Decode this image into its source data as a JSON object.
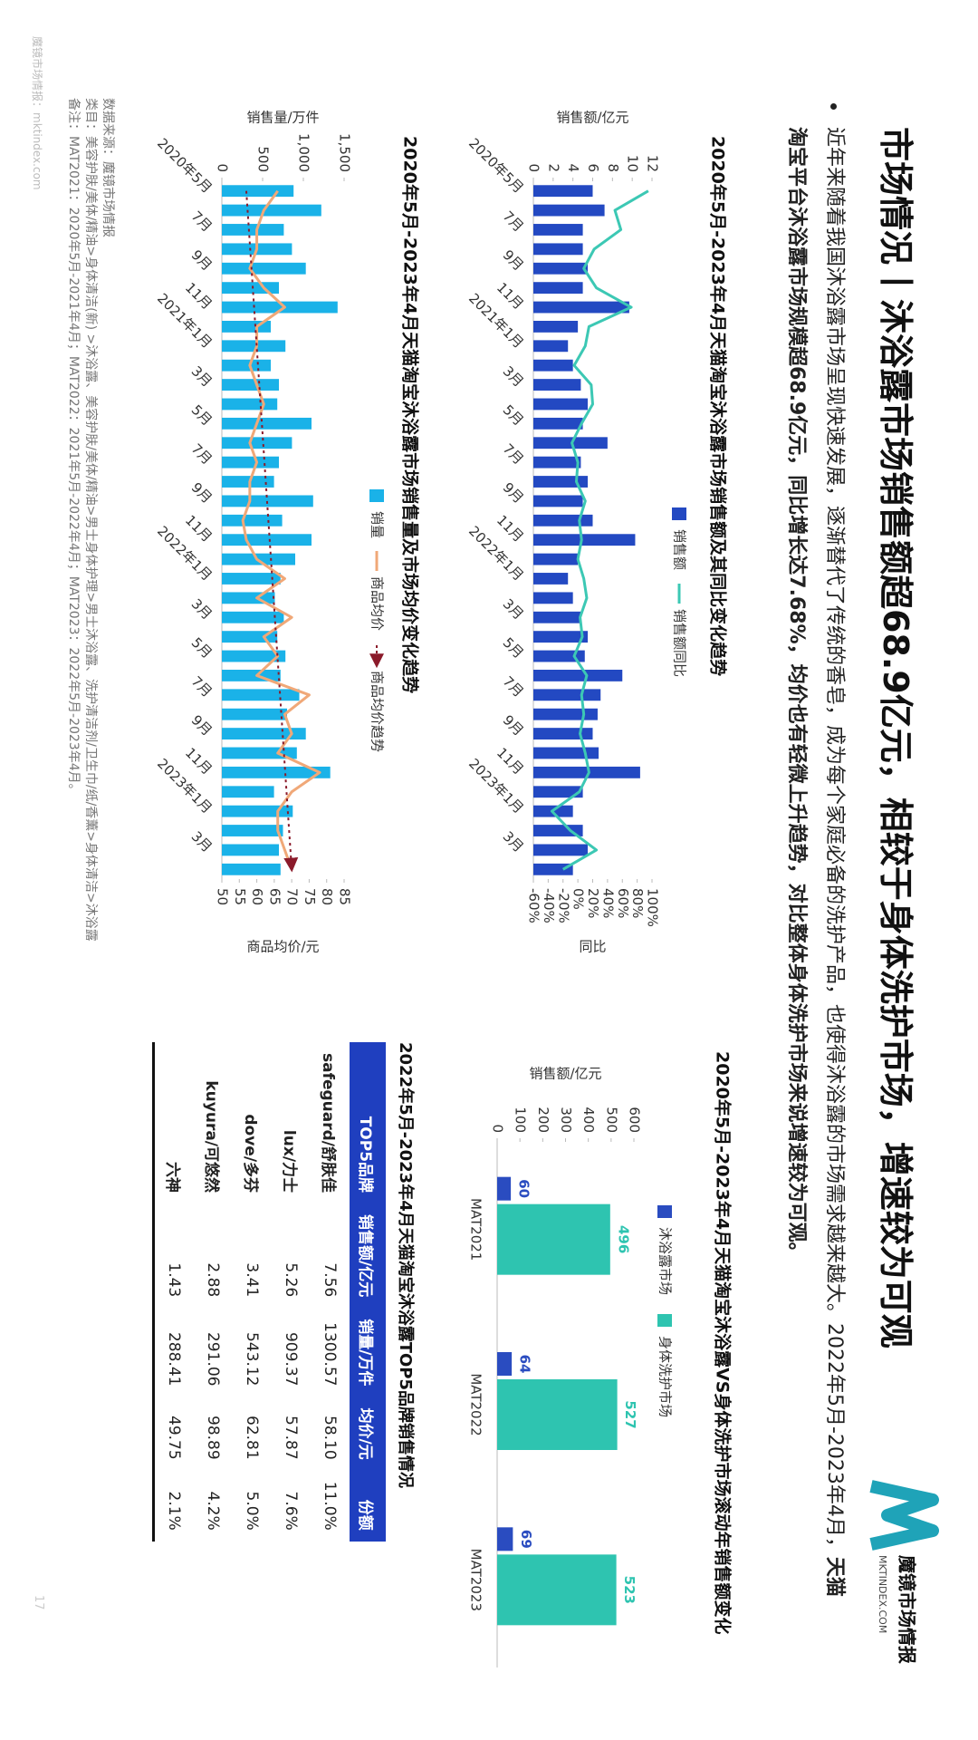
{
  "header": {
    "title": "市场情况丨沐浴露市场销售额超68.9亿元，相较于身体洗护市场，增速较为可观",
    "logo_name": "魔镜市场情报",
    "logo_url": "MKTINDEX.COM"
  },
  "intro": {
    "text": "近年来随着我国沐浴露市场呈现快速发展，逐渐替代了传统的香皂，成为每个家庭必备的洗护产品，也使得沐浴露的市场需求越来越大。2022年5月-2023年4月，",
    "highlight": "天猫淘宝平台沐浴露市场规模超68.9亿元，同比增长达7.68%，均价也有轻微上升趋势，对比整体身体洗护市场来说增速较为可观。"
  },
  "chart_data": [
    {
      "type": "bar-line",
      "title": "2020年5月-2023年4月天猫淘宝沐浴露市场销售额及其同比变化趋势",
      "y_label": "销售额/亿元",
      "y2_label": "同比",
      "categories": [
        "2020年5月",
        null,
        "7月",
        null,
        "9月",
        null,
        "11月",
        null,
        "2021年1月",
        null,
        "3月",
        null,
        "5月",
        null,
        "7月",
        null,
        "9月",
        null,
        "11月",
        null,
        "2022年1月",
        null,
        "3月",
        null,
        "5月",
        null,
        "7月",
        null,
        "9月",
        null,
        "11月",
        null,
        "2023年1月",
        null,
        "3月",
        null
      ],
      "series": [
        {
          "name": "销售额",
          "color": "#2349c2",
          "type": "bar",
          "values": [
            6.0,
            7.2,
            5.0,
            5.0,
            5.5,
            5.0,
            9.7,
            4.5,
            3.5,
            4.0,
            4.8,
            5.5,
            5.0,
            7.5,
            4.8,
            5.5,
            5.0,
            6.0,
            10.3,
            4.5,
            3.5,
            4.0,
            4.8,
            5.5,
            5.2,
            9.0,
            6.8,
            6.5,
            6.0,
            6.6,
            10.8,
            5.0,
            4.0,
            5.0,
            5.5,
            4.0
          ]
        },
        {
          "name": "销售额同比",
          "color": "#3cc8b4",
          "type": "line",
          "axis": "y2",
          "values": [
            95,
            50,
            58,
            22,
            8,
            25,
            72,
            15,
            10,
            -5,
            18,
            20,
            5,
            -8,
            0,
            -2,
            10,
            2,
            5,
            0,
            8,
            12,
            3,
            6,
            -5,
            12,
            5,
            8,
            3,
            10,
            15,
            2,
            -35,
            -10,
            25,
            -20
          ]
        }
      ],
      "ylim": [
        0,
        12
      ],
      "yticks": [
        0,
        2,
        4,
        6,
        8,
        10,
        12
      ],
      "y2lim": [
        -60,
        100
      ],
      "y2ticks": [
        {
          "value": -60,
          "label": "-60%"
        },
        {
          "value": -40,
          "label": "-40%"
        },
        {
          "value": -20,
          "label": "-20%"
        },
        {
          "value": 0,
          "label": "0%"
        },
        {
          "value": 20,
          "label": "20%"
        },
        {
          "value": 40,
          "label": "40%"
        },
        {
          "value": 60,
          "label": "60%"
        },
        {
          "value": 80,
          "label": "80%"
        },
        {
          "value": 100,
          "label": "100%"
        }
      ]
    },
    {
      "type": "bar-line",
      "title": "2020年5月-2023年4月天猫淘宝沐浴露市场销售量及市场均价变化趋势",
      "y_label": "销售量/万件",
      "y2_label": "商品均价/元",
      "categories": [
        "2020年5月",
        null,
        "7月",
        null,
        "9月",
        null,
        "11月",
        null,
        "2021年1月",
        null,
        "3月",
        null,
        "5月",
        null,
        "7月",
        null,
        "9月",
        null,
        "11月",
        null,
        "2022年1月",
        null,
        "3月",
        null,
        "5月",
        null,
        "7月",
        null,
        "9月",
        null,
        "11月",
        null,
        "2023年1月",
        null,
        "3月",
        null
      ],
      "series": [
        {
          "name": "销量",
          "color": "#1ab2e8",
          "type": "bar",
          "values": [
            880,
            1220,
            760,
            860,
            1030,
            700,
            1420,
            600,
            780,
            600,
            700,
            680,
            1100,
            860,
            700,
            640,
            1120,
            740,
            1100,
            900,
            720,
            650,
            760,
            680,
            780,
            720,
            950,
            800,
            1030,
            920,
            1330,
            640,
            870,
            750,
            700,
            720
          ]
        },
        {
          "name": "商品均价",
          "color": "#f0a878",
          "type": "line",
          "axis": "y2",
          "values": [
            66,
            62,
            60,
            60,
            58,
            62,
            68,
            60,
            60,
            58,
            60,
            62,
            60,
            58,
            60,
            58,
            58,
            56,
            57,
            60,
            68,
            60,
            70,
            62,
            66,
            60,
            75,
            68,
            70,
            66,
            78,
            70,
            66,
            66,
            68,
            70
          ]
        }
      ],
      "trend": {
        "name": "商品均价趋势",
        "color": "#8b1a2a",
        "axis": "y2",
        "start": 57,
        "end": 70
      },
      "ylim": [
        0,
        1500
      ],
      "yticks": [
        0,
        500,
        {
          "value": 1000,
          "label": "1,000"
        },
        {
          "value": 1500,
          "label": "1,500"
        }
      ],
      "y2lim": [
        50,
        85
      ],
      "y2ticks": [
        50,
        55,
        60,
        65,
        70,
        75,
        80,
        85
      ]
    },
    {
      "type": "grouped-bar",
      "title": "2020年5月-2023年4月天猫淘宝沐浴露VS身体洗护市场滚动年销售额变化",
      "y_label": "销售额/亿元",
      "categories": [
        "MAT2021",
        "MAT2022",
        "MAT2023"
      ],
      "series": [
        {
          "name": "沐浴露市场",
          "color": "#2a4cc0",
          "values": [
            60,
            64,
            69
          ]
        },
        {
          "name": "身体洗护市场",
          "color": "#2ec4b0",
          "values": [
            496,
            527,
            523
          ]
        }
      ],
      "ylim": [
        0,
        600
      ],
      "yticks": [
        0,
        100,
        200,
        300,
        400,
        500,
        600
      ]
    }
  ],
  "table": {
    "title": "2022年5月-2023年4月天猫淘宝沐浴露TOP5品牌销售情况",
    "columns": [
      "TOP5品牌",
      "销售额/亿元",
      "销量/万件",
      "均价/元",
      "份额"
    ],
    "rows": [
      [
        "safeguard/舒肤佳",
        "7.56",
        "1300.57",
        "58.10",
        "11.0%"
      ],
      [
        "lux/力士",
        "5.26",
        "909.37",
        "57.87",
        "7.6%"
      ],
      [
        "dove/多芬",
        "3.41",
        "543.12",
        "62.81",
        "5.0%"
      ],
      [
        "kuyura/可悠然",
        "2.88",
        "291.06",
        "98.89",
        "4.2%"
      ],
      [
        "六神",
        "1.43",
        "288.41",
        "49.75",
        "2.1%"
      ]
    ]
  },
  "footnotes": [
    "数据来源：魔镜市场情报",
    "类目：美容护肤/美体/精油>身体清洁(新) >沐浴露、美容护肤/美体/精油>男士身体护理>男士沐浴露、洗护清洁剂/卫生巾/纸/香薰>身体清洁>沐浴露",
    "备注：MAT2021：2020年5月-2021年4月；MAT2022：2021年5月-2022年4月；MAT2023：2022年5月-2023年4月。"
  ],
  "watermark": "魔镜市场情报：mktindex.com",
  "page_number": "17"
}
